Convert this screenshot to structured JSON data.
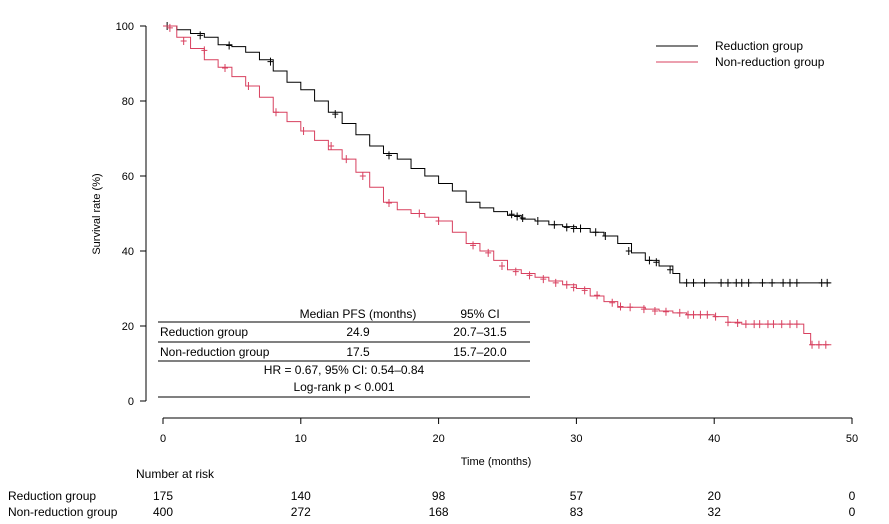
{
  "chart_data": {
    "type": "line",
    "subtype": "kaplan-meier",
    "xlabel": "Time (months)",
    "ylabel": "Survival rate (%)",
    "xlim": [
      0,
      50
    ],
    "ylim": [
      0,
      100
    ],
    "xticks": [
      0,
      10,
      20,
      30,
      40,
      50
    ],
    "yticks": [
      0,
      20,
      40,
      60,
      80,
      100
    ],
    "grid": false,
    "legend_position": "top-right",
    "series": [
      {
        "name": "Reduction group",
        "color": "#000000",
        "steps": [
          [
            0,
            100
          ],
          [
            1,
            99
          ],
          [
            2,
            98
          ],
          [
            3,
            97
          ],
          [
            4,
            95
          ],
          [
            5,
            94.5
          ],
          [
            6,
            93
          ],
          [
            7,
            91
          ],
          [
            8,
            88
          ],
          [
            9,
            85
          ],
          [
            10,
            83
          ],
          [
            11,
            80
          ],
          [
            12,
            77
          ],
          [
            13,
            74
          ],
          [
            14,
            71
          ],
          [
            15,
            68
          ],
          [
            16,
            66
          ],
          [
            17,
            64.5
          ],
          [
            18,
            62
          ],
          [
            19,
            60
          ],
          [
            20,
            58
          ],
          [
            21,
            56
          ],
          [
            22,
            53
          ],
          [
            23,
            51.5
          ],
          [
            24,
            50.5
          ],
          [
            25,
            49.5
          ],
          [
            26,
            48.5
          ],
          [
            27,
            48
          ],
          [
            28,
            47
          ],
          [
            29,
            46.5
          ],
          [
            30,
            46
          ],
          [
            31,
            45
          ],
          [
            32,
            44
          ],
          [
            33,
            42
          ],
          [
            34,
            39.5
          ],
          [
            35,
            37.5
          ],
          [
            36,
            36
          ],
          [
            37,
            34
          ],
          [
            37.5,
            31.5
          ],
          [
            48.5,
            31.5
          ]
        ],
        "censored": [
          [
            0.3,
            100
          ],
          [
            2.7,
            97.5
          ],
          [
            4.8,
            94.8
          ],
          [
            7.8,
            90.5
          ],
          [
            12.5,
            76.5
          ],
          [
            16.4,
            65.5
          ],
          [
            25.3,
            49.8
          ],
          [
            25.7,
            49.2
          ],
          [
            26.1,
            48.8
          ],
          [
            27.2,
            48
          ],
          [
            28.4,
            47
          ],
          [
            29.3,
            46.3
          ],
          [
            29.8,
            46
          ],
          [
            30.3,
            46
          ],
          [
            31.4,
            45
          ],
          [
            32.1,
            44
          ],
          [
            33.8,
            40
          ],
          [
            35.3,
            37.5
          ],
          [
            35.8,
            37
          ],
          [
            36.8,
            35
          ],
          [
            38,
            31.5
          ],
          [
            38.5,
            31.5
          ],
          [
            39.3,
            31.5
          ],
          [
            40.5,
            31.5
          ],
          [
            41,
            31.5
          ],
          [
            41.6,
            31.5
          ],
          [
            42,
            31.5
          ],
          [
            42.5,
            31.5
          ],
          [
            43.5,
            31.5
          ],
          [
            44.2,
            31.5
          ],
          [
            45,
            31.5
          ],
          [
            45.5,
            31.5
          ],
          [
            46,
            31.5
          ],
          [
            47.8,
            31.5
          ],
          [
            48.2,
            31.5
          ]
        ]
      },
      {
        "name": "Non-reduction group",
        "color": "#d8405f",
        "steps": [
          [
            0,
            100
          ],
          [
            1,
            97
          ],
          [
            2,
            94
          ],
          [
            3,
            91
          ],
          [
            4,
            89
          ],
          [
            5,
            86.5
          ],
          [
            6,
            84
          ],
          [
            7,
            81
          ],
          [
            8,
            77
          ],
          [
            9,
            74.5
          ],
          [
            10,
            72
          ],
          [
            11,
            69.5
          ],
          [
            12,
            67
          ],
          [
            13,
            64.5
          ],
          [
            14,
            61
          ],
          [
            15,
            57
          ],
          [
            16,
            53
          ],
          [
            17,
            51
          ],
          [
            18,
            50
          ],
          [
            19,
            49
          ],
          [
            20,
            48
          ],
          [
            21,
            45
          ],
          [
            22,
            42
          ],
          [
            23,
            40
          ],
          [
            24,
            37.5
          ],
          [
            25,
            35
          ],
          [
            26,
            34
          ],
          [
            27,
            33
          ],
          [
            28,
            32
          ],
          [
            29,
            31
          ],
          [
            30,
            30
          ],
          [
            31,
            28
          ],
          [
            32,
            26.5
          ],
          [
            33,
            25
          ],
          [
            34,
            25
          ],
          [
            35,
            24.5
          ],
          [
            36,
            24
          ],
          [
            37,
            23.5
          ],
          [
            38,
            23
          ],
          [
            40,
            22.5
          ],
          [
            41,
            21
          ],
          [
            42,
            20.5
          ],
          [
            46,
            20.5
          ],
          [
            46.5,
            18
          ],
          [
            47,
            15
          ],
          [
            48.5,
            15
          ]
        ],
        "censored": [
          [
            0.5,
            99.5
          ],
          [
            1.5,
            96
          ],
          [
            3,
            93.5
          ],
          [
            4.5,
            88.8
          ],
          [
            6.2,
            84
          ],
          [
            8.2,
            77
          ],
          [
            10.2,
            72
          ],
          [
            12.2,
            68
          ],
          [
            13.3,
            64.5
          ],
          [
            14.5,
            60
          ],
          [
            16.4,
            52.8
          ],
          [
            18.6,
            50
          ],
          [
            20,
            48
          ],
          [
            22.5,
            41.5
          ],
          [
            23.6,
            39.5
          ],
          [
            24.6,
            36
          ],
          [
            25.6,
            34.5
          ],
          [
            26.6,
            33.5
          ],
          [
            27.6,
            32.5
          ],
          [
            28.5,
            31.5
          ],
          [
            29.3,
            31
          ],
          [
            29.8,
            30.3
          ],
          [
            30.6,
            29.5
          ],
          [
            31.5,
            28.2
          ],
          [
            32.6,
            26.2
          ],
          [
            33.2,
            25.2
          ],
          [
            33.9,
            25
          ],
          [
            34.9,
            24.5
          ],
          [
            35.7,
            24
          ],
          [
            36.5,
            23.8
          ],
          [
            37.5,
            23.5
          ],
          [
            38.1,
            23
          ],
          [
            38.5,
            23
          ],
          [
            39,
            23
          ],
          [
            39.5,
            23
          ],
          [
            40.1,
            22.5
          ],
          [
            41,
            21
          ],
          [
            41.7,
            20.8
          ],
          [
            42.3,
            20.5
          ],
          [
            42.9,
            20.5
          ],
          [
            43.3,
            20.5
          ],
          [
            43.9,
            20.5
          ],
          [
            44.3,
            20.5
          ],
          [
            44.9,
            20.5
          ],
          [
            45.5,
            20.5
          ],
          [
            46,
            20.5
          ],
          [
            47.1,
            15
          ],
          [
            47.6,
            15
          ],
          [
            48.1,
            15
          ]
        ]
      }
    ],
    "table": {
      "headers": [
        "",
        "Median PFS (months)",
        "95% CI"
      ],
      "rows": [
        [
          "Reduction group",
          "24.9",
          "20.7–31.5"
        ],
        [
          "Non-reduction group",
          "17.5",
          "15.7–20.0"
        ]
      ],
      "notes": [
        "HR = 0.67, 95% CI: 0.54–0.84",
        "Log-rank p < 0.001"
      ]
    },
    "risk_table": {
      "title": "Number at risk",
      "times": [
        0,
        10,
        20,
        30,
        40,
        50
      ],
      "rows": [
        {
          "label": "Reduction group",
          "values": [
            "175",
            "140",
            "98",
            "57",
            "20",
            "0"
          ]
        },
        {
          "label": "Non-reduction group",
          "values": [
            "400",
            "272",
            "168",
            "83",
            "32",
            "0"
          ]
        }
      ]
    }
  }
}
